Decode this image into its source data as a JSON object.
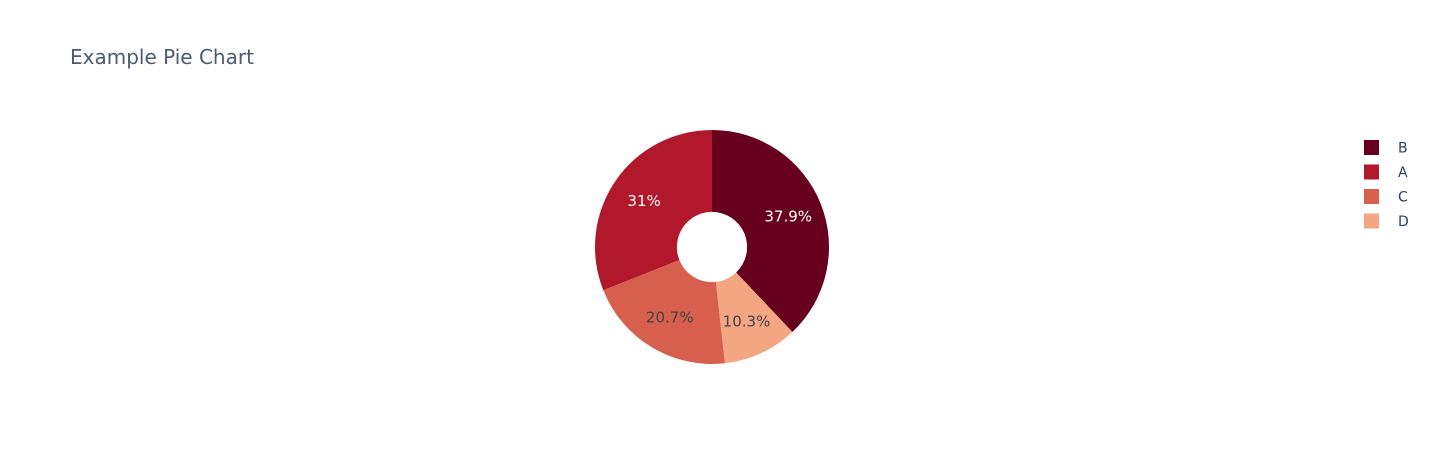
{
  "chart_data": {
    "type": "pie",
    "title": "Example Pie Chart",
    "hole": 0.3,
    "direction": "clockwise",
    "rotation_start": "top",
    "legend_position": "top-right",
    "slices": [
      {
        "label": "B",
        "value": 37.9,
        "text": "37.9%",
        "color": "#67001f",
        "text_color": "#ffffff"
      },
      {
        "label": "D",
        "value": 10.3,
        "text": "10.3%",
        "color": "#f4a582",
        "text_color": "#444444"
      },
      {
        "label": "C",
        "value": 20.7,
        "text": "20.7%",
        "color": "#d6604d",
        "text_color": "#444444"
      },
      {
        "label": "A",
        "value": 31.0,
        "text": "31%",
        "color": "#b2182b",
        "text_color": "#ffffff"
      }
    ],
    "legend": [
      {
        "label": "B",
        "color": "#67001f"
      },
      {
        "label": "A",
        "color": "#b2182b"
      },
      {
        "label": "C",
        "color": "#d6604d"
      },
      {
        "label": "D",
        "color": "#f4a582"
      }
    ]
  }
}
